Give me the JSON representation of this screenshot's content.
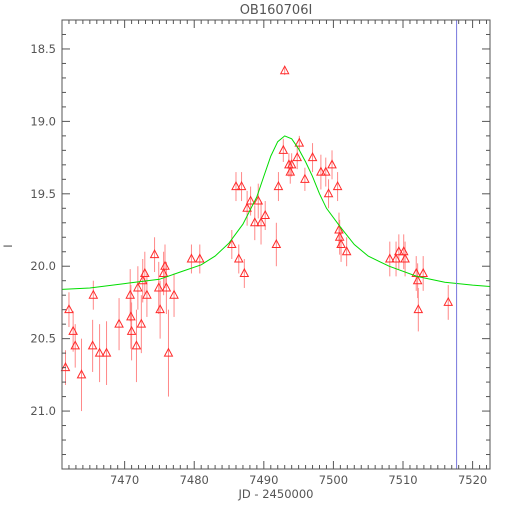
{
  "chart_data": {
    "type": "scatter",
    "title": "OB160706I",
    "xlabel": "JD - 2450000",
    "ylabel": "I",
    "xlim": [
      7461.0,
      7522.5
    ],
    "ylim": [
      21.4,
      18.3
    ],
    "y_inverted": true,
    "grid": false,
    "legend": "none",
    "x_ticks": [
      7470,
      7480,
      7490,
      7500,
      7510,
      7520
    ],
    "x_tick_labels": [
      "7470",
      "7480",
      "7490",
      "7500",
      "7510",
      "7520"
    ],
    "y_ticks": [
      18.5,
      19.0,
      19.5,
      20.0,
      20.5,
      21.0
    ],
    "y_tick_labels": [
      "18.5",
      "19.0",
      "19.5",
      "20.0",
      "20.5",
      "21.0"
    ],
    "colors": {
      "points": "#ff2a2a",
      "errorbars": "#ff8888",
      "model": "#00dd00",
      "marker_line": "#7777dd",
      "axis": "#555555"
    },
    "marker_line_x": 7517.7,
    "series": [
      {
        "kind": "points",
        "marker": "open-triangle",
        "x": [
          7461.5,
          7462.0,
          7462.6,
          7462.9,
          7463.8,
          7465.4,
          7465.5,
          7466.4,
          7467.4,
          7469.2,
          7470.8,
          7470.9,
          7471.0,
          7471.7,
          7471.9,
          7472.4,
          7472.6,
          7472.9,
          7473.2,
          7474.3,
          7474.9,
          7475.1,
          7475.6,
          7475.8,
          7476.0,
          7476.3,
          7477.1,
          7479.6,
          7480.8,
          7485.4,
          7486.0,
          7486.4,
          7486.8,
          7487.2,
          7487.6,
          7488.1,
          7488.7,
          7489.2,
          7489.6,
          7490.2,
          7491.8,
          7492.1,
          7492.8,
          7493.0,
          7493.6,
          7493.8,
          7494.0,
          7494.8,
          7495.1,
          7495.9,
          7497.0,
          7498.2,
          7498.9,
          7499.3,
          7499.8,
          7500.6,
          7500.8,
          7500.9,
          7501.1,
          7501.9,
          7508.1,
          7509.0,
          7509.4,
          7510.1,
          7510.3,
          7511.9,
          7512.1,
          7512.2,
          7512.9,
          7516.5
        ],
        "y": [
          20.7,
          20.3,
          20.45,
          20.55,
          20.75,
          20.55,
          20.2,
          20.6,
          20.6,
          20.4,
          20.2,
          20.35,
          20.45,
          20.55,
          20.15,
          20.4,
          20.1,
          20.05,
          20.2,
          19.92,
          20.15,
          20.3,
          20.05,
          20.0,
          20.15,
          20.6,
          20.2,
          19.95,
          19.95,
          19.85,
          19.45,
          19.95,
          19.45,
          20.05,
          19.6,
          19.55,
          19.7,
          19.55,
          19.7,
          19.65,
          19.85,
          19.45,
          19.2,
          18.65,
          19.3,
          19.35,
          19.3,
          19.25,
          19.15,
          19.4,
          19.25,
          19.35,
          19.35,
          19.5,
          19.3,
          19.45,
          19.75,
          19.8,
          19.85,
          19.9,
          19.95,
          19.95,
          19.9,
          19.9,
          19.95,
          20.05,
          20.1,
          20.3,
          20.05,
          20.25
        ],
        "err": [
          0.12,
          0.12,
          0.14,
          0.15,
          0.25,
          0.18,
          0.1,
          0.2,
          0.22,
          0.18,
          0.18,
          0.22,
          0.2,
          0.25,
          0.15,
          0.2,
          0.15,
          0.15,
          0.15,
          0.12,
          0.18,
          0.2,
          0.15,
          0.15,
          0.18,
          0.3,
          0.15,
          0.1,
          0.1,
          0.1,
          0.1,
          0.1,
          0.1,
          0.1,
          0.12,
          0.1,
          0.12,
          0.12,
          0.15,
          0.1,
          0.15,
          0.1,
          0.08,
          0.03,
          0.08,
          0.08,
          0.08,
          0.08,
          0.05,
          0.08,
          0.1,
          0.12,
          0.1,
          0.1,
          0.1,
          0.1,
          0.12,
          0.12,
          0.12,
          0.1,
          0.12,
          0.12,
          0.12,
          0.12,
          0.12,
          0.12,
          0.12,
          0.15,
          0.12,
          0.12
        ]
      },
      {
        "kind": "model-curve",
        "x": [
          7461,
          7465,
          7470,
          7475,
          7478,
          7481,
          7483,
          7485,
          7487,
          7489,
          7490,
          7491,
          7492,
          7493,
          7494,
          7495,
          7496,
          7497,
          7498,
          7499,
          7501,
          7503,
          7505,
          7508,
          7512,
          7516,
          7520,
          7522.5
        ],
        "y": [
          20.16,
          20.15,
          20.12,
          20.09,
          20.04,
          19.99,
          19.93,
          19.84,
          19.71,
          19.52,
          19.38,
          19.24,
          19.14,
          19.1,
          19.12,
          19.19,
          19.28,
          19.38,
          19.5,
          19.6,
          19.73,
          19.85,
          19.93,
          20.0,
          20.07,
          20.11,
          20.13,
          20.14
        ]
      }
    ]
  }
}
